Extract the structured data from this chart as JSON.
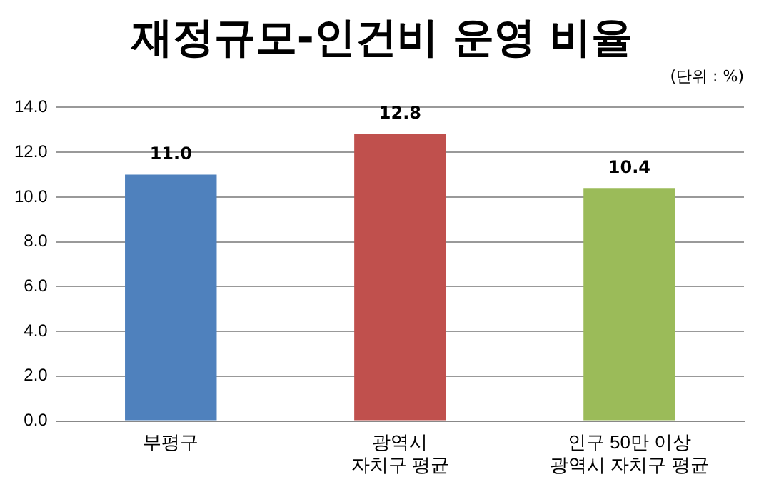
{
  "chart_data": {
    "type": "bar",
    "title": "재정규모-인건비 운영 비율",
    "annotations": [
      "(단위 : %)"
    ],
    "categories": [
      "부평구",
      "광역시\n자치구 평균",
      "인구 50만 이상\n광역시 자치구 평균"
    ],
    "values": [
      11.0,
      12.8,
      10.4
    ],
    "value_labels": [
      "11.0",
      "12.8",
      "10.4"
    ],
    "colors": [
      "#4f81bd",
      "#c0504d",
      "#9bbb59"
    ],
    "ylim": [
      0,
      14
    ],
    "yticks": [
      {
        "value": 0,
        "label": "0.0"
      },
      {
        "value": 2,
        "label": "2.0"
      },
      {
        "value": 4,
        "label": "4.0"
      },
      {
        "value": 6,
        "label": "6.0"
      },
      {
        "value": 8,
        "label": "8.0"
      },
      {
        "value": 10,
        "label": "10.0"
      },
      {
        "value": 12,
        "label": "12.0"
      },
      {
        "value": 14,
        "label": "14.0"
      }
    ],
    "grid": "y"
  }
}
